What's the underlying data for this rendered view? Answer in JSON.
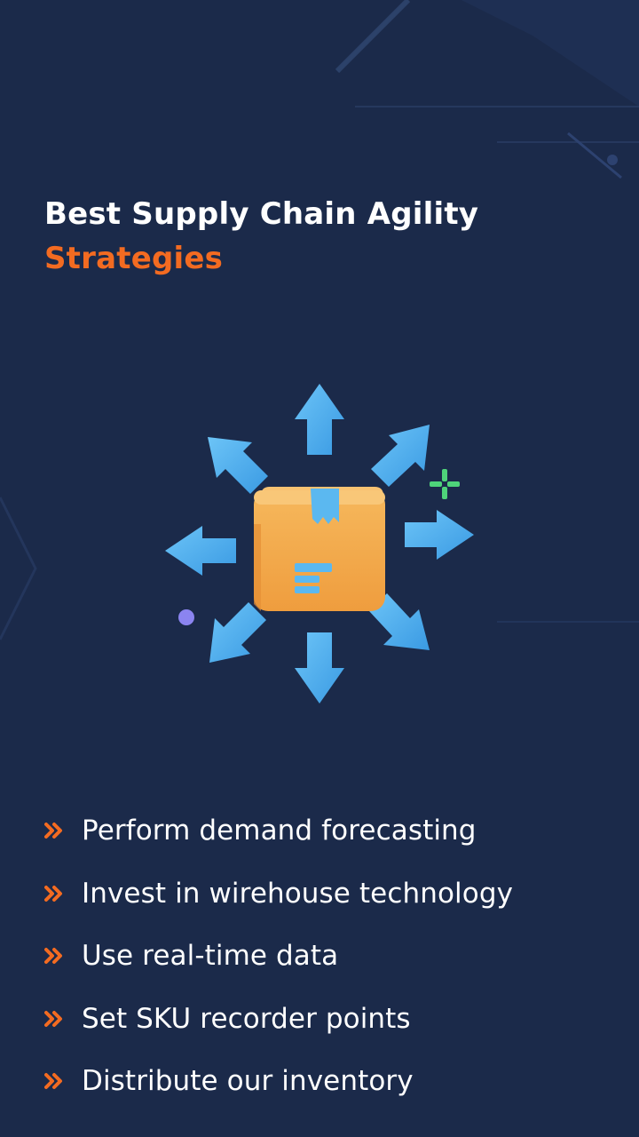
{
  "title": {
    "line1": "Best Supply Chain Agility",
    "line2": "Strategies"
  },
  "illustration": {
    "icon": "box-distribution-arrows-icon"
  },
  "bullet_icon": "double-chevron-right-icon",
  "strategies": [
    "Perform demand forecasting",
    "Invest in wirehouse technology",
    "Use real-time data",
    "Set SKU recorder points",
    "Distribute our inventory"
  ],
  "colors": {
    "background": "#1b2a4a",
    "title": "#ffffff",
    "accent": "#f36b21",
    "arrow": "#4aaef0",
    "box": "#f3a94d",
    "tape": "#5bb8f0",
    "sparkle": "#4ed47a",
    "dot": "#8b84f0"
  }
}
